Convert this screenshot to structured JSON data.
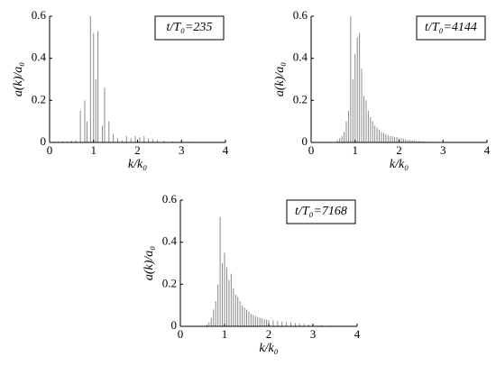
{
  "chart_data": [
    {
      "type": "stem",
      "annotation": "t/T₀=235",
      "xlabel": "k/k₀",
      "ylabel": "a(k)/a₀",
      "color": "#8a8a8a",
      "xlim": [
        0,
        4
      ],
      "ylim": [
        0,
        0.6
      ],
      "xticks": [
        0,
        1,
        2,
        3,
        4
      ],
      "yticks": [
        0,
        0.2,
        0.4,
        0.6
      ],
      "x": [
        0.1,
        0.2,
        0.3,
        0.4,
        0.5,
        0.6,
        0.7,
        0.8,
        0.85,
        0.93,
        1.0,
        1.05,
        1.1,
        1.2,
        1.25,
        1.35,
        1.45,
        1.55,
        1.65,
        1.75,
        1.85,
        1.95,
        2.05,
        2.15,
        2.25,
        2.35,
        2.45,
        2.6,
        2.8,
        3.0,
        3.2,
        3.5
      ],
      "values": [
        0.005,
        0.005,
        0.005,
        0.005,
        0.008,
        0.01,
        0.15,
        0.2,
        0.1,
        0.6,
        0.52,
        0.3,
        0.53,
        0.08,
        0.26,
        0.1,
        0.04,
        0.02,
        0.01,
        0.03,
        0.02,
        0.03,
        0.025,
        0.03,
        0.02,
        0.015,
        0.01,
        0.008,
        0.005,
        0.005,
        0.003,
        0.002
      ]
    },
    {
      "type": "stem",
      "annotation": "t/T₀=4144",
      "xlabel": "k/k₀",
      "ylabel": "a(k)/a₀",
      "color": "#8a8a8a",
      "xlim": [
        0,
        4
      ],
      "ylim": [
        0,
        0.6
      ],
      "xticks": [
        0,
        1,
        2,
        3,
        4
      ],
      "yticks": [
        0,
        0.2,
        0.4,
        0.6
      ],
      "x": [
        0.6,
        0.65,
        0.7,
        0.75,
        0.8,
        0.85,
        0.9,
        0.95,
        1.0,
        1.05,
        1.1,
        1.15,
        1.2,
        1.25,
        1.3,
        1.35,
        1.4,
        1.45,
        1.5,
        1.55,
        1.6,
        1.65,
        1.7,
        1.75,
        1.8,
        1.85,
        1.9,
        1.95,
        2.0,
        2.05,
        2.1,
        2.15,
        2.2,
        2.25,
        2.3,
        2.35,
        2.4,
        2.45,
        2.5,
        2.55,
        2.6
      ],
      "values": [
        0.01,
        0.02,
        0.03,
        0.05,
        0.1,
        0.15,
        0.6,
        0.3,
        0.42,
        0.5,
        0.52,
        0.35,
        0.22,
        0.2,
        0.15,
        0.12,
        0.1,
        0.08,
        0.07,
        0.06,
        0.05,
        0.045,
        0.04,
        0.035,
        0.03,
        0.03,
        0.025,
        0.025,
        0.02,
        0.02,
        0.018,
        0.015,
        0.012,
        0.01,
        0.01,
        0.008,
        0.007,
        0.006,
        0.005,
        0.005,
        0.004
      ]
    },
    {
      "type": "stem",
      "annotation": "t/T₀=7168",
      "xlabel": "k/k₀",
      "ylabel": "a(k)/a₀",
      "color": "#8a8a8a",
      "xlim": [
        0,
        4
      ],
      "ylim": [
        0,
        0.6
      ],
      "xticks": [
        0,
        1,
        2,
        3,
        4
      ],
      "yticks": [
        0,
        0.2,
        0.4,
        0.6
      ],
      "x": [
        0.6,
        0.65,
        0.7,
        0.75,
        0.8,
        0.85,
        0.9,
        0.95,
        1.0,
        1.05,
        1.1,
        1.15,
        1.2,
        1.25,
        1.3,
        1.35,
        1.4,
        1.45,
        1.5,
        1.55,
        1.6,
        1.65,
        1.7,
        1.75,
        1.8,
        1.85,
        1.9,
        1.95,
        2.0,
        2.1,
        2.2,
        2.3,
        2.4,
        2.5,
        2.6,
        2.7,
        2.8,
        2.9,
        3.0,
        3.2,
        3.4,
        3.6
      ],
      "values": [
        0.01,
        0.02,
        0.04,
        0.08,
        0.12,
        0.2,
        0.52,
        0.3,
        0.35,
        0.28,
        0.22,
        0.25,
        0.18,
        0.15,
        0.14,
        0.12,
        0.1,
        0.09,
        0.08,
        0.07,
        0.06,
        0.055,
        0.05,
        0.045,
        0.04,
        0.038,
        0.035,
        0.032,
        0.03,
        0.028,
        0.025,
        0.022,
        0.02,
        0.018,
        0.015,
        0.013,
        0.012,
        0.01,
        0.008,
        0.006,
        0.004,
        0.003
      ]
    }
  ]
}
